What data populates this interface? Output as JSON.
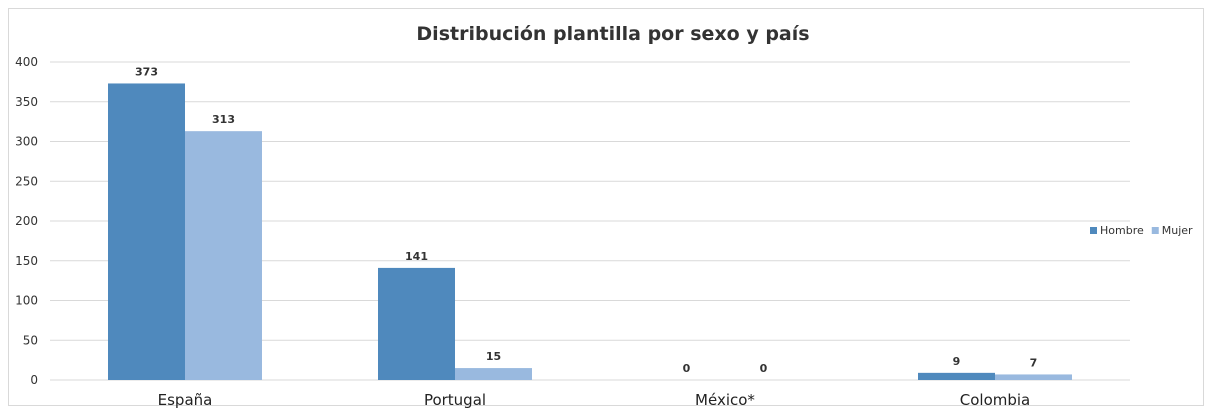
{
  "chart_data": {
    "type": "bar",
    "title": "Distribución plantilla por sexo y país",
    "xlabel": "",
    "ylabel": "",
    "categories": [
      "España",
      "Portugal",
      "México*",
      "Colombia"
    ],
    "series": [
      {
        "name": "Hombre",
        "values": [
          373,
          141,
          0,
          9
        ],
        "color": "#4f89bd"
      },
      {
        "name": "Mujer",
        "values": [
          313,
          15,
          0,
          7
        ],
        "color": "#99b9df"
      }
    ],
    "ylim": [
      0,
      400
    ],
    "yticks": [
      0,
      50,
      100,
      150,
      200,
      250,
      300,
      350,
      400
    ],
    "grid": true,
    "legend_position": "right"
  }
}
